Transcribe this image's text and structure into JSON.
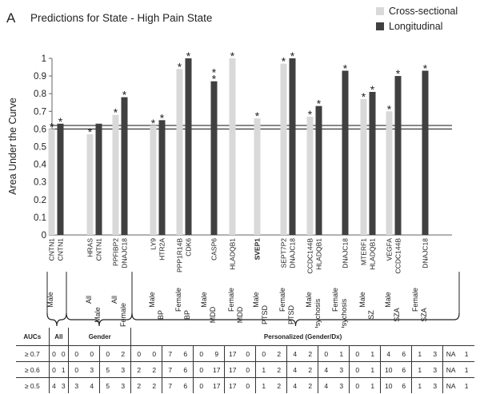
{
  "panel_letter": "A",
  "chart_data": {
    "type": "bar",
    "title": "Predictions for State - High Pain State",
    "ylabel": "Area Under the Curve",
    "xlabel": "",
    "ylim": [
      0,
      1
    ],
    "yticks": [
      "0",
      "0.1",
      "0.2",
      "0.3",
      "0.4",
      "0.5",
      "0.6",
      "0.7",
      "0.8",
      "0.9",
      "1"
    ],
    "grid": false,
    "legend": "top-right",
    "reference_lines": [
      0.62,
      0.6
    ],
    "series": [
      {
        "name": "Cross-sectional",
        "color": "#d9d9d9"
      },
      {
        "name": "Longitudinal",
        "color": "#404040"
      }
    ],
    "groups": [
      {
        "label": "All",
        "slots": [
          {
            "cat": [
              "Male",
              ""
            ],
            "cs": {
              "gene": "CNTN1",
              "value": 0.6,
              "star": true
            },
            "lg": {
              "gene": "CNTN1",
              "value": 0.63,
              "star": true
            }
          }
        ]
      },
      {
        "label": "Gender",
        "slots": [
          {
            "cat": [
              "All",
              "Male"
            ],
            "cs": {
              "gene": "HRAS",
              "value": 0.57,
              "star": true
            },
            "lg": {
              "gene": "CNTN1",
              "value": 0.63,
              "star": false
            }
          },
          {
            "cat": [
              "All",
              "Female"
            ],
            "cs": {
              "gene": "PPFIBP2",
              "value": 0.68,
              "star": true
            },
            "lg": {
              "gene": "DNAJC18",
              "value": 0.78,
              "star": true
            }
          }
        ]
      },
      {
        "label": "Personalized (Gender/Dx)",
        "slots": [
          {
            "cat": [
              "Male",
              "BP"
            ],
            "cs": {
              "gene": "LY9",
              "value": 0.62,
              "star": true
            },
            "lg": {
              "gene": "HTR2A",
              "value": 0.65,
              "star": true
            }
          },
          {
            "cat": [
              "Female",
              "BP"
            ],
            "cs": {
              "gene": "PPP1R14B",
              "value": 0.94,
              "star": true
            },
            "lg": {
              "gene": "CDK6",
              "value": 1.0,
              "star": true
            }
          },
          {
            "cat": [
              "Male",
              "MDD"
            ],
            "cs": null,
            "lg": {
              "gene": "CASP6",
              "value": 0.87,
              "star": true,
              "double_star": true
            }
          },
          {
            "cat": [
              "Female",
              "MDD"
            ],
            "cs": {
              "gene": "HLADQB1",
              "value": 1.0,
              "star": true
            },
            "lg": null
          },
          {
            "cat": [
              "Male",
              "PTSD"
            ],
            "cs": {
              "gene": "SVEP1",
              "value": 0.66,
              "star": true,
              "bold": true
            },
            "lg": null
          },
          {
            "cat": [
              "Female",
              "PTSD"
            ],
            "cs": {
              "gene": "SEPT7P2",
              "value": 0.97,
              "star": true
            },
            "lg": {
              "gene": "DNAJC18",
              "value": 1.0,
              "star": true
            }
          },
          {
            "cat": [
              "Male",
              "Psychosis"
            ],
            "cs": {
              "gene": "CCDC144B",
              "value": 0.67,
              "star": true
            },
            "lg": {
              "gene": "HLADQB1",
              "value": 0.73,
              "star": true
            }
          },
          {
            "cat": [
              "Female",
              "Psychosis"
            ],
            "cs": null,
            "lg": {
              "gene": "DNAJC18",
              "value": 0.93,
              "star": true
            }
          },
          {
            "cat": [
              "Male",
              "SZ"
            ],
            "cs": {
              "gene": "MTERF1",
              "value": 0.77,
              "star": true
            },
            "lg": {
              "gene": "HLADQB1",
              "value": 0.81,
              "star": true
            }
          },
          {
            "cat": [
              "Male",
              "SZA"
            ],
            "cs": {
              "gene": "VEGFA",
              "value": 0.7,
              "star": true
            },
            "lg": {
              "gene": "CCDC144B",
              "value": 0.9,
              "star": true
            }
          },
          {
            "cat": [
              "Female",
              "SZA"
            ],
            "cs": null,
            "lg": {
              "gene": "DNAJC18",
              "value": 0.93,
              "star": true
            }
          }
        ]
      }
    ]
  },
  "table": {
    "header": [
      "AUCs",
      "All",
      "Gender",
      "Personalized (Gender/Dx)"
    ],
    "rows": [
      {
        "label": "≥ 0.7",
        "cells": [
          "0",
          "0",
          "0",
          "0",
          "0",
          "2",
          "0",
          "0",
          "7",
          "6",
          "0",
          "9",
          "17",
          "0",
          "0",
          "2",
          "4",
          "2",
          "0",
          "1",
          "0",
          "1",
          "4",
          "6",
          "1",
          "3",
          "NA",
          "1"
        ]
      },
      {
        "label": "≥ 0.6",
        "cells": [
          "0",
          "1",
          "0",
          "3",
          "5",
          "3",
          "2",
          "2",
          "7",
          "6",
          "0",
          "17",
          "17",
          "0",
          "1",
          "2",
          "4",
          "2",
          "4",
          "3",
          "0",
          "1",
          "10",
          "6",
          "1",
          "3",
          "NA",
          "1"
        ]
      },
      {
        "label": "≥ 0.5",
        "cells": [
          "4",
          "3",
          "3",
          "4",
          "5",
          "3",
          "2",
          "2",
          "7",
          "6",
          "0",
          "17",
          "17",
          "0",
          "1",
          "2",
          "4",
          "2",
          "4",
          "3",
          "0",
          "1",
          "10",
          "6",
          "1",
          "3",
          "NA",
          "1"
        ]
      }
    ]
  }
}
